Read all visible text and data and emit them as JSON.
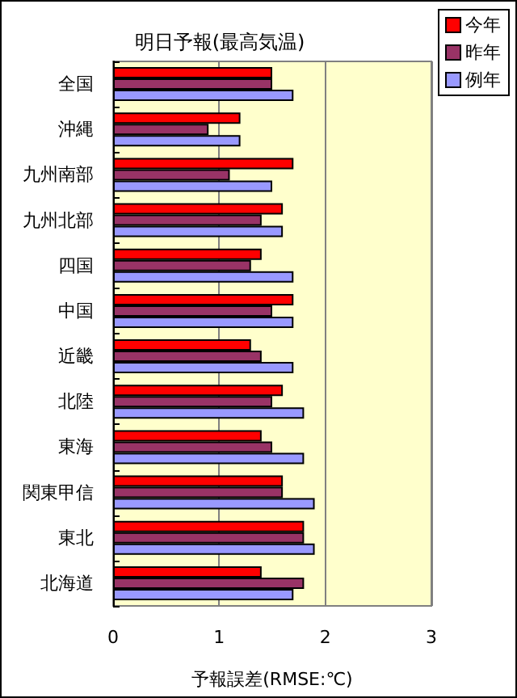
{
  "chart_data": {
    "type": "bar",
    "orientation": "horizontal",
    "title": "明日予報(最高気温)",
    "xlabel": "予報誤差(RMSE:℃)",
    "categories": [
      "全国",
      "沖縄",
      "九州南部",
      "九州北部",
      "四国",
      "中国",
      "近畿",
      "北陸",
      "東海",
      "関東甲信",
      "東北",
      "北海道"
    ],
    "series": [
      {
        "name": "今年",
        "color": "#ff0000",
        "values": [
          1.5,
          1.2,
          1.7,
          1.6,
          1.4,
          1.7,
          1.3,
          1.6,
          1.4,
          1.6,
          1.8,
          1.4
        ]
      },
      {
        "name": "昨年",
        "color": "#993366",
        "values": [
          1.5,
          0.9,
          1.1,
          1.4,
          1.3,
          1.5,
          1.4,
          1.5,
          1.5,
          1.6,
          1.8,
          1.8
        ]
      },
      {
        "name": "例年",
        "color": "#9999ff",
        "values": [
          1.7,
          1.2,
          1.5,
          1.6,
          1.7,
          1.7,
          1.7,
          1.8,
          1.8,
          1.9,
          1.9,
          1.7
        ]
      }
    ],
    "xlim": [
      0,
      3
    ],
    "xticks": [
      0,
      1,
      2,
      3
    ],
    "grid": "x",
    "legend": "top right"
  }
}
